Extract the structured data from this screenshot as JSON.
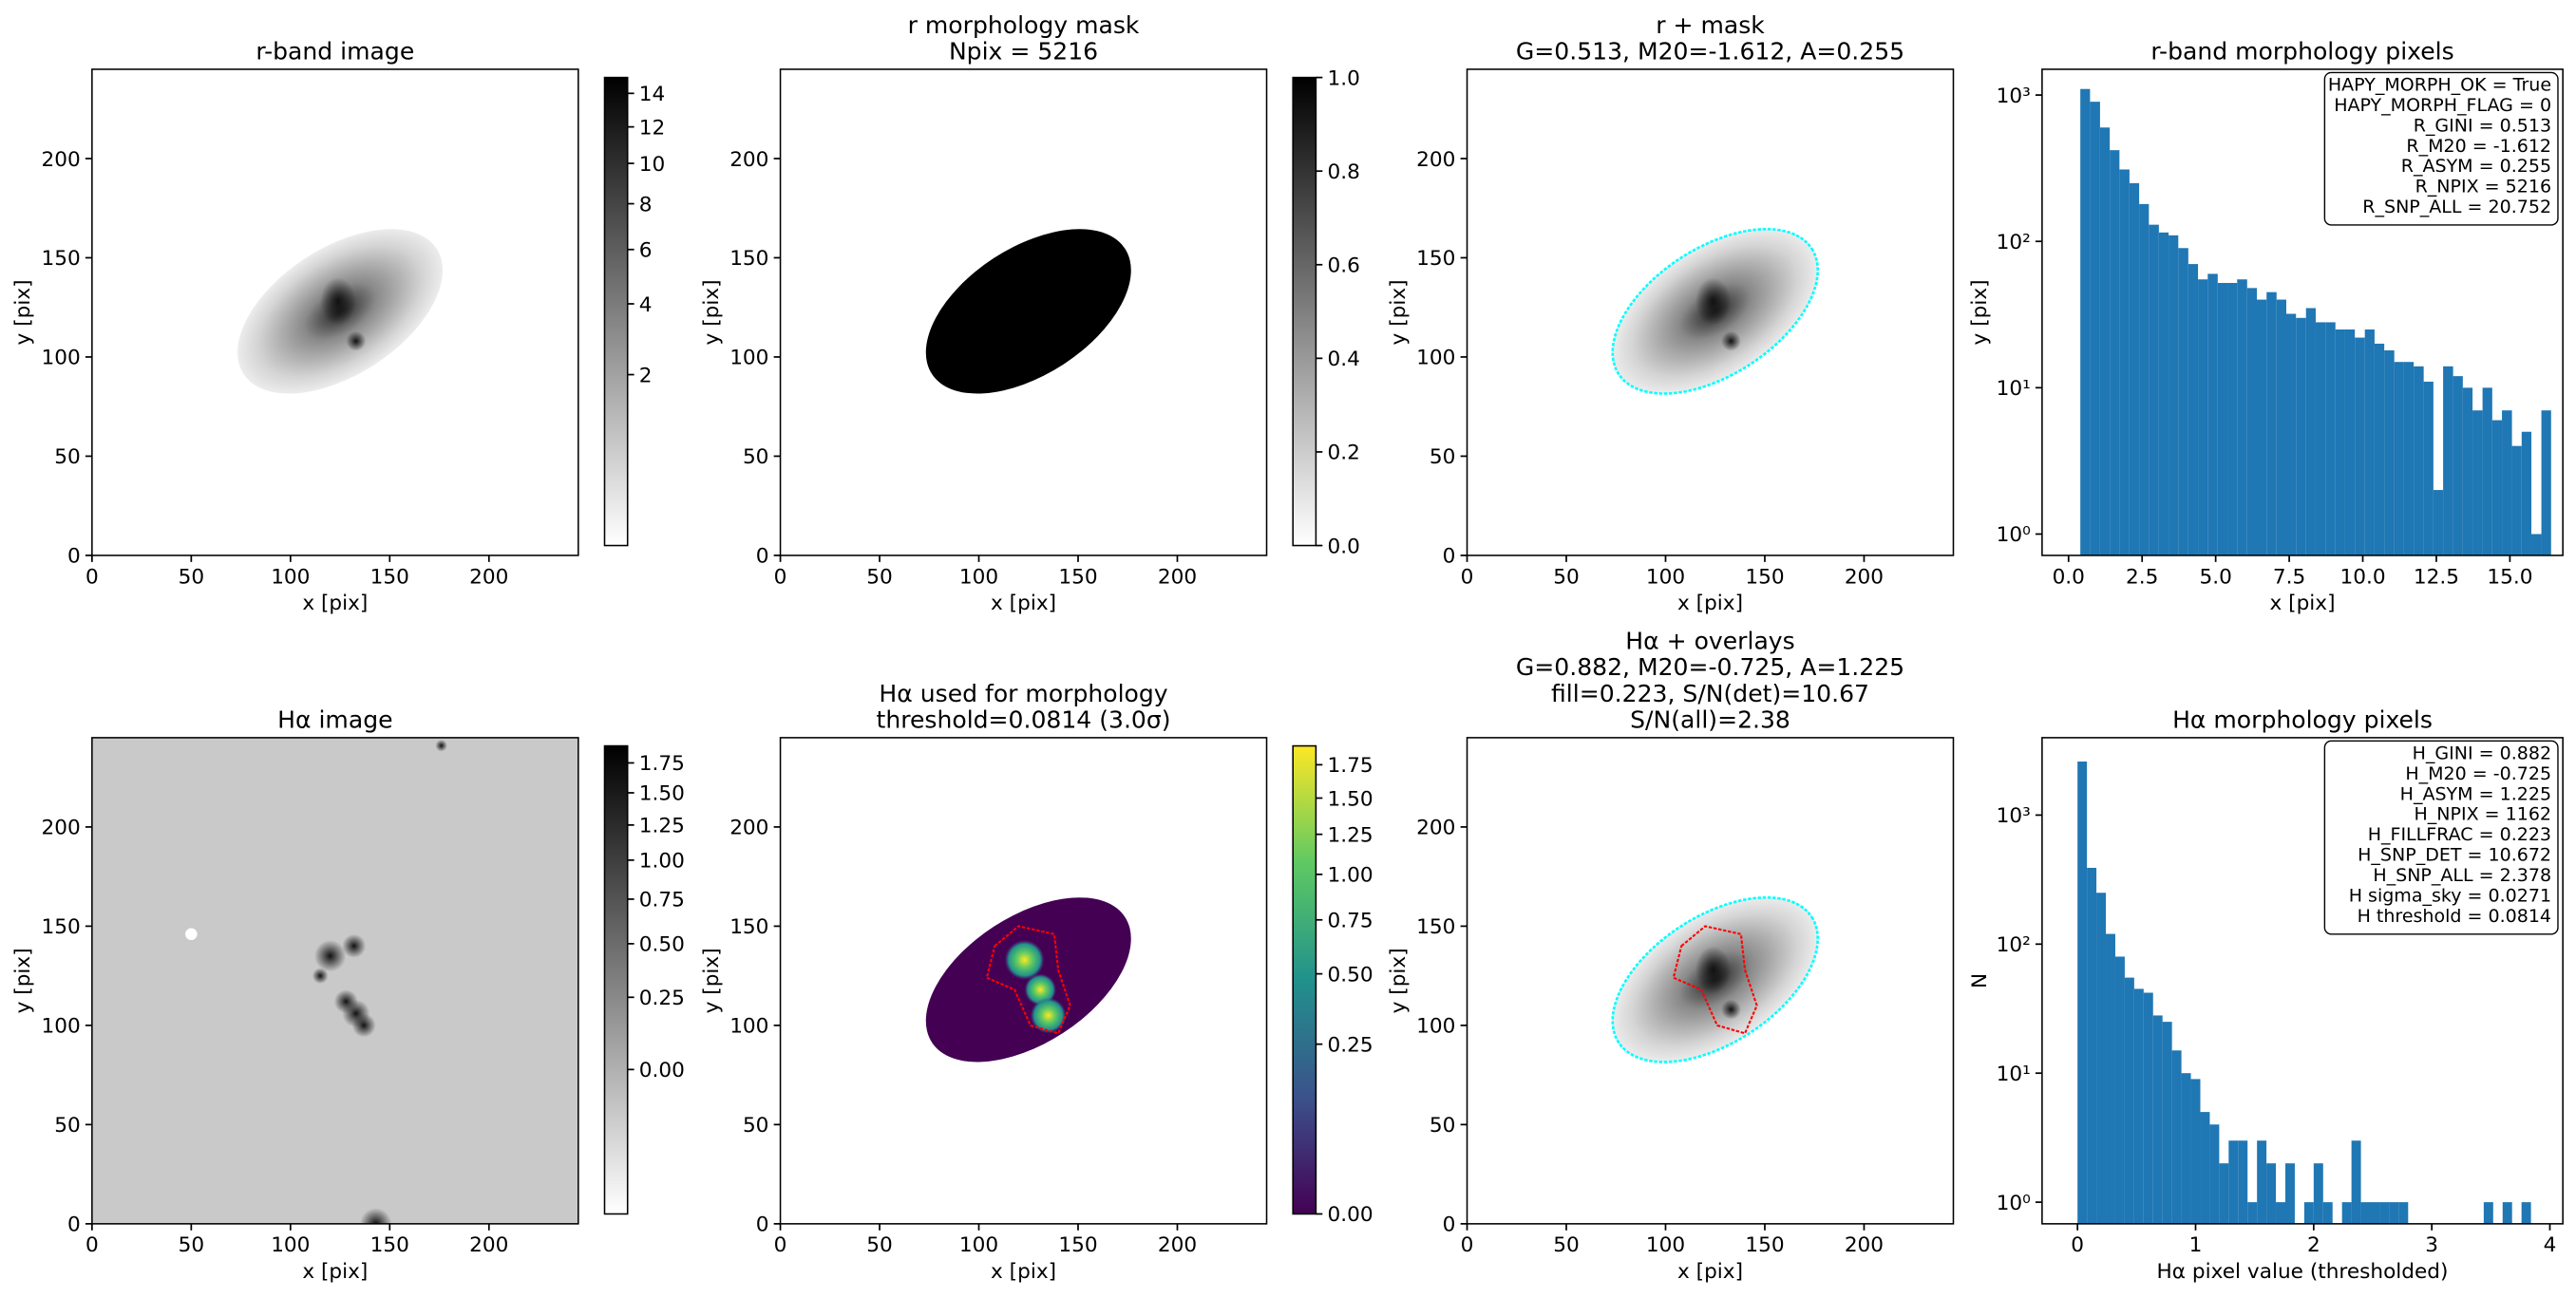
{
  "chart_data": [
    {
      "type": "image",
      "title": [
        "r-band image"
      ],
      "xlabel": "x [pix]",
      "ylabel": "y [pix]",
      "xlim": [
        0,
        245
      ],
      "ylim": [
        0,
        245
      ],
      "xticks": [
        0,
        50,
        100,
        150,
        200
      ],
      "yticks": [
        0,
        50,
        100,
        150,
        200
      ],
      "cmap": "gray_r",
      "contours": [],
      "cbar_lim": [
        0,
        15
      ],
      "cbar_stretch": "sqrt",
      "cbar_ticks": [
        2,
        4,
        6,
        8,
        10,
        12,
        14
      ]
    },
    {
      "type": "image",
      "title": [
        "r morphology mask",
        "Npix = 5216"
      ],
      "xlabel": "x [pix]",
      "ylabel": "y [pix]",
      "xlim": [
        0,
        245
      ],
      "ylim": [
        0,
        245
      ],
      "xticks": [
        0,
        50,
        100,
        150,
        200
      ],
      "yticks": [
        0,
        50,
        100,
        150,
        200
      ],
      "cmap": "mask",
      "contours": [],
      "cbar_lim": [
        0,
        1
      ],
      "cbar_stretch": "linear",
      "cbar_ticks": [
        {
          "value": 0,
          "label": "0.0"
        },
        {
          "value": 0.2,
          "label": "0.2"
        },
        {
          "value": 0.4,
          "label": "0.4"
        },
        {
          "value": 0.6,
          "label": "0.6"
        },
        {
          "value": 0.8,
          "label": "0.8"
        },
        {
          "value": 1,
          "label": "1.0"
        }
      ]
    },
    {
      "type": "image",
      "title": [
        "r + mask",
        "G=0.513, M20=-1.612, A=0.255"
      ],
      "xlabel": "x [pix]",
      "ylabel": "y [pix]",
      "xlim": [
        0,
        245
      ],
      "ylim": [
        0,
        245
      ],
      "xticks": [
        0,
        50,
        100,
        150,
        200
      ],
      "yticks": [
        0,
        50,
        100,
        150,
        200
      ],
      "cmap": "gray_r",
      "contours": [
        "#00ffff"
      ]
    },
    {
      "type": "histogram",
      "title": [
        "r-band morphology pixels"
      ],
      "xlabel": "x [pix]",
      "ylabel": "y [pix]",
      "xlim": [
        -0.9,
        16.8
      ],
      "ylim": [
        0.715,
        1500
      ],
      "log_y": true,
      "color": "#1f77b4",
      "xticks": [
        {
          "value": 0,
          "label": "0.0"
        },
        2.5,
        {
          "value": 5,
          "label": "5.0"
        },
        7.5,
        {
          "value": 10,
          "label": "10.0"
        },
        12.5,
        {
          "value": 15,
          "label": "15.0"
        }
      ],
      "yticks": [
        {
          "value": 1,
          "label": "10⁰"
        },
        {
          "value": 10,
          "label": "10¹"
        },
        {
          "value": 100,
          "label": "10²"
        },
        {
          "value": 1000,
          "label": "10³"
        }
      ],
      "bins": [
        0.4,
        0.73,
        1.07,
        1.4,
        1.73,
        2.07,
        2.4,
        2.73,
        3.07,
        3.4,
        3.73,
        4.07,
        4.4,
        4.73,
        5.07,
        5.4,
        5.73,
        6.07,
        6.4,
        6.73,
        7.07,
        7.4,
        7.73,
        8.07,
        8.4,
        8.73,
        9.07,
        9.4,
        9.73,
        10.07,
        10.4,
        10.73,
        11.07,
        11.4,
        11.73,
        12.07,
        12.4,
        12.73,
        13.07,
        13.4,
        13.73,
        14.07,
        14.4,
        14.73,
        15.07,
        15.4,
        15.73,
        16.07,
        16.4
      ],
      "values": [
        1100,
        900,
        600,
        420,
        310,
        250,
        180,
        130,
        115,
        110,
        90,
        70,
        55,
        60,
        52,
        52,
        55,
        48,
        40,
        45,
        40,
        32,
        30,
        35,
        28,
        28,
        25,
        25,
        22,
        25,
        20,
        18,
        15,
        15,
        14,
        11,
        2,
        14,
        12,
        10,
        7,
        10,
        6,
        7,
        4,
        5,
        1,
        7
      ],
      "annotation_lines": [
        "HAPY_MORPH_OK = True",
        "HAPY_MORPH_FLAG = 0",
        "R_GINI = 0.513",
        "R_M20 = -1.612",
        "R_ASYM = 0.255",
        "R_NPIX = 5216",
        "R_SNP_ALL = 20.752"
      ]
    },
    {
      "type": "image",
      "title": [
        "Hα image"
      ],
      "xlabel": "x [pix]",
      "ylabel": "y [pix]",
      "xlim": [
        0,
        245
      ],
      "ylim": [
        0,
        245
      ],
      "xticks": [
        0,
        50,
        100,
        150,
        200
      ],
      "yticks": [
        0,
        50,
        100,
        150,
        200
      ],
      "cmap": "halpha",
      "contours": [],
      "cbar_lim": [
        -0.2,
        1.9
      ],
      "cbar_stretch": "sqrt",
      "cbar_ticks": [
        {
          "value": 0,
          "label": "0.00"
        },
        0.25,
        {
          "value": 0.5,
          "label": "0.50"
        },
        0.75,
        {
          "value": 1,
          "label": "1.00"
        },
        1.25,
        {
          "value": 1.5,
          "label": "1.50"
        },
        1.75
      ]
    },
    {
      "type": "image",
      "title": [
        "Hα used for morphology",
        "threshold=0.0814 (3.0σ)"
      ],
      "xlabel": "x [pix]",
      "ylabel": "y [pix]",
      "xlim": [
        0,
        245
      ],
      "ylim": [
        0,
        245
      ],
      "xticks": [
        0,
        50,
        100,
        150,
        200
      ],
      "yticks": [
        0,
        50,
        100,
        150,
        200
      ],
      "cmap": "viridis",
      "contours": [
        "#ff0000"
      ],
      "cbar_lim": [
        0,
        1.9
      ],
      "cbar_stretch": "sqrt",
      "cbar_ticks": [
        {
          "value": 0,
          "label": "0.00"
        },
        0.25,
        {
          "value": 0.5,
          "label": "0.50"
        },
        0.75,
        {
          "value": 1,
          "label": "1.00"
        },
        1.25,
        {
          "value": 1.5,
          "label": "1.50"
        },
        1.75
      ]
    },
    {
      "type": "image",
      "title": [
        "Hα + overlays",
        "G=0.882, M20=-0.725, A=1.225",
        "fill=0.223, S/N(det)=10.67",
        "S/N(all)=2.38"
      ],
      "xlabel": "x [pix]",
      "ylabel": "y [pix]",
      "xlim": [
        0,
        245
      ],
      "ylim": [
        0,
        245
      ],
      "xticks": [
        0,
        50,
        100,
        150,
        200
      ],
      "yticks": [
        0,
        50,
        100,
        150,
        200
      ],
      "cmap": "gray_r",
      "contours": [
        "#00ffff",
        "#ff0000"
      ]
    },
    {
      "type": "histogram",
      "title": [
        "Hα morphology pixels"
      ],
      "xlabel": "Hα pixel value (thresholded)",
      "ylabel": "N",
      "xlim": [
        -0.3,
        4.11
      ],
      "ylim": [
        0.68,
        3980
      ],
      "log_y": true,
      "color": "#1f77b4",
      "xticks": [
        0,
        1,
        2,
        3,
        4
      ],
      "yticks": [
        {
          "value": 1,
          "label": "10⁰"
        },
        {
          "value": 10,
          "label": "10¹"
        },
        {
          "value": 100,
          "label": "10²"
        },
        {
          "value": 1000,
          "label": "10³"
        }
      ],
      "bins": [
        0,
        0.08,
        0.16,
        0.24,
        0.32,
        0.4,
        0.48,
        0.56,
        0.64,
        0.72,
        0.8,
        0.88,
        0.96,
        1.04,
        1.12,
        1.2,
        1.28,
        1.36,
        1.44,
        1.52,
        1.6,
        1.68,
        1.76,
        1.84,
        1.92,
        2,
        2.08,
        2.16,
        2.24,
        2.32,
        2.4,
        2.48,
        2.56,
        2.64,
        2.72,
        2.8,
        2.88,
        2.96,
        3.04,
        3.12,
        3.2,
        3.28,
        3.36,
        3.44,
        3.52,
        3.6,
        3.68,
        3.76,
        3.84
      ],
      "values": [
        2600,
        390,
        250,
        120,
        80,
        55,
        45,
        42,
        28,
        25,
        15,
        10,
        9,
        5,
        4,
        2,
        3,
        3,
        1,
        3,
        2,
        1,
        2,
        0,
        1,
        2,
        1,
        0,
        1,
        3,
        1,
        1,
        1,
        1,
        1,
        0,
        0,
        0,
        0,
        0,
        0,
        0,
        0,
        1,
        0,
        1,
        0,
        1
      ],
      "annotation_lines": [
        "H_GINI = 0.882",
        "H_M20 = -0.725",
        "H_ASYM = 1.225",
        "H_NPIX = 1162",
        "H_FILLFRAC = 0.223",
        "H_SNP_DET = 10.672",
        "H_SNP_ALL = 2.378",
        "H sigma_sky = 0.0271",
        "H threshold = 0.0814"
      ]
    }
  ]
}
